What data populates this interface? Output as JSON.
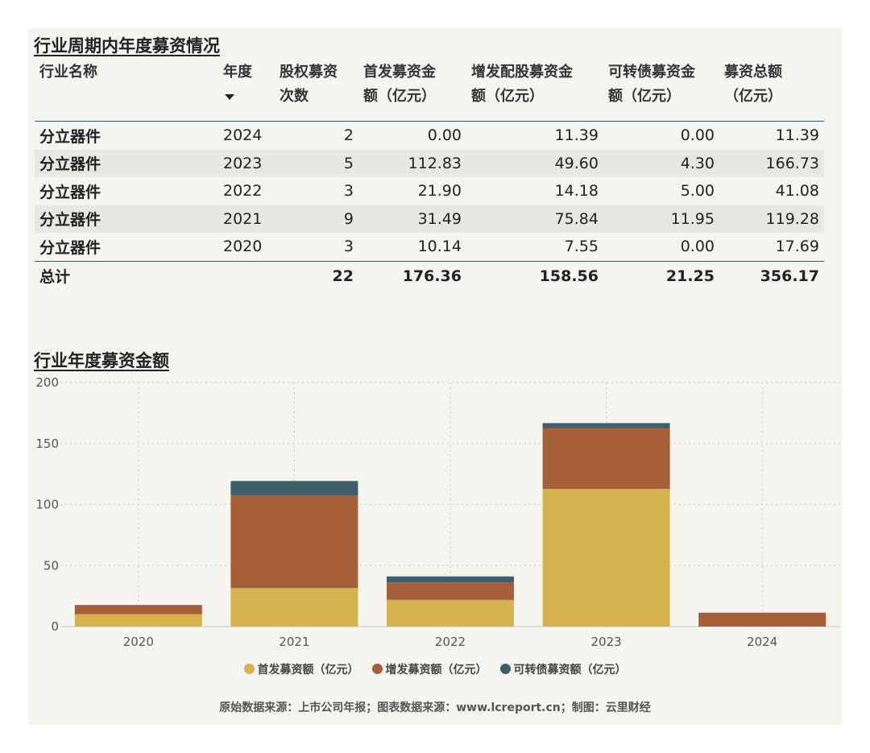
{
  "table_title": "行业周期内年度募资情况",
  "table": {
    "headers": [
      {
        "line1": "行业名称",
        "line2": ""
      },
      {
        "line1": "年度",
        "line2": ""
      },
      {
        "line1": "股权募资",
        "line2": "次数"
      },
      {
        "line1": "首发募资金",
        "line2": "额（亿元）"
      },
      {
        "line1": "增发配股募资金",
        "line2": "额（亿元）"
      },
      {
        "line1": "可转债募资金",
        "line2": "额（亿元）"
      },
      {
        "line1": "募资总额",
        "line2": "（亿元）"
      }
    ],
    "sort_column": "年度",
    "rows": [
      {
        "name": "分立器件",
        "year": "2024",
        "count": "2",
        "ipo": "0.00",
        "additional": "11.39",
        "convertible": "0.00",
        "total": "11.39"
      },
      {
        "name": "分立器件",
        "year": "2023",
        "count": "5",
        "ipo": "112.83",
        "additional": "49.60",
        "convertible": "4.30",
        "total": "166.73"
      },
      {
        "name": "分立器件",
        "year": "2022",
        "count": "3",
        "ipo": "21.90",
        "additional": "14.18",
        "convertible": "5.00",
        "total": "41.08"
      },
      {
        "name": "分立器件",
        "year": "2021",
        "count": "9",
        "ipo": "31.49",
        "additional": "75.84",
        "convertible": "11.95",
        "total": "119.28"
      },
      {
        "name": "分立器件",
        "year": "2020",
        "count": "3",
        "ipo": "10.14",
        "additional": "7.55",
        "convertible": "0.00",
        "total": "17.69"
      }
    ],
    "footer": {
      "label": "总计",
      "count": "22",
      "ipo": "176.36",
      "additional": "158.56",
      "convertible": "21.25",
      "total": "356.17"
    }
  },
  "chart_title": "行业年度募资金额",
  "chart_data": {
    "type": "bar",
    "stacked": true,
    "categories": [
      "2020",
      "2021",
      "2022",
      "2023",
      "2024"
    ],
    "series": [
      {
        "name": "首发募资额（亿元）",
        "color": "#d4b24c",
        "values": [
          10.14,
          31.49,
          21.9,
          112.83,
          0.0
        ]
      },
      {
        "name": "增发募资额（亿元）",
        "color": "#a55f39",
        "values": [
          7.55,
          75.84,
          14.18,
          49.6,
          11.39
        ]
      },
      {
        "name": "可转债募资额（亿元）",
        "color": "#3e5e69",
        "values": [
          0.0,
          11.95,
          5.0,
          4.3,
          0.0
        ]
      }
    ],
    "y_ticks": [
      "0",
      "50",
      "100",
      "150",
      "200"
    ],
    "ylim": [
      0,
      200
    ],
    "grid": true,
    "legend_position": "bottom"
  },
  "source_note": "原始数据来源：上市公司年报；图表数据来源：www.lcreport.cn；制图：云里财经"
}
